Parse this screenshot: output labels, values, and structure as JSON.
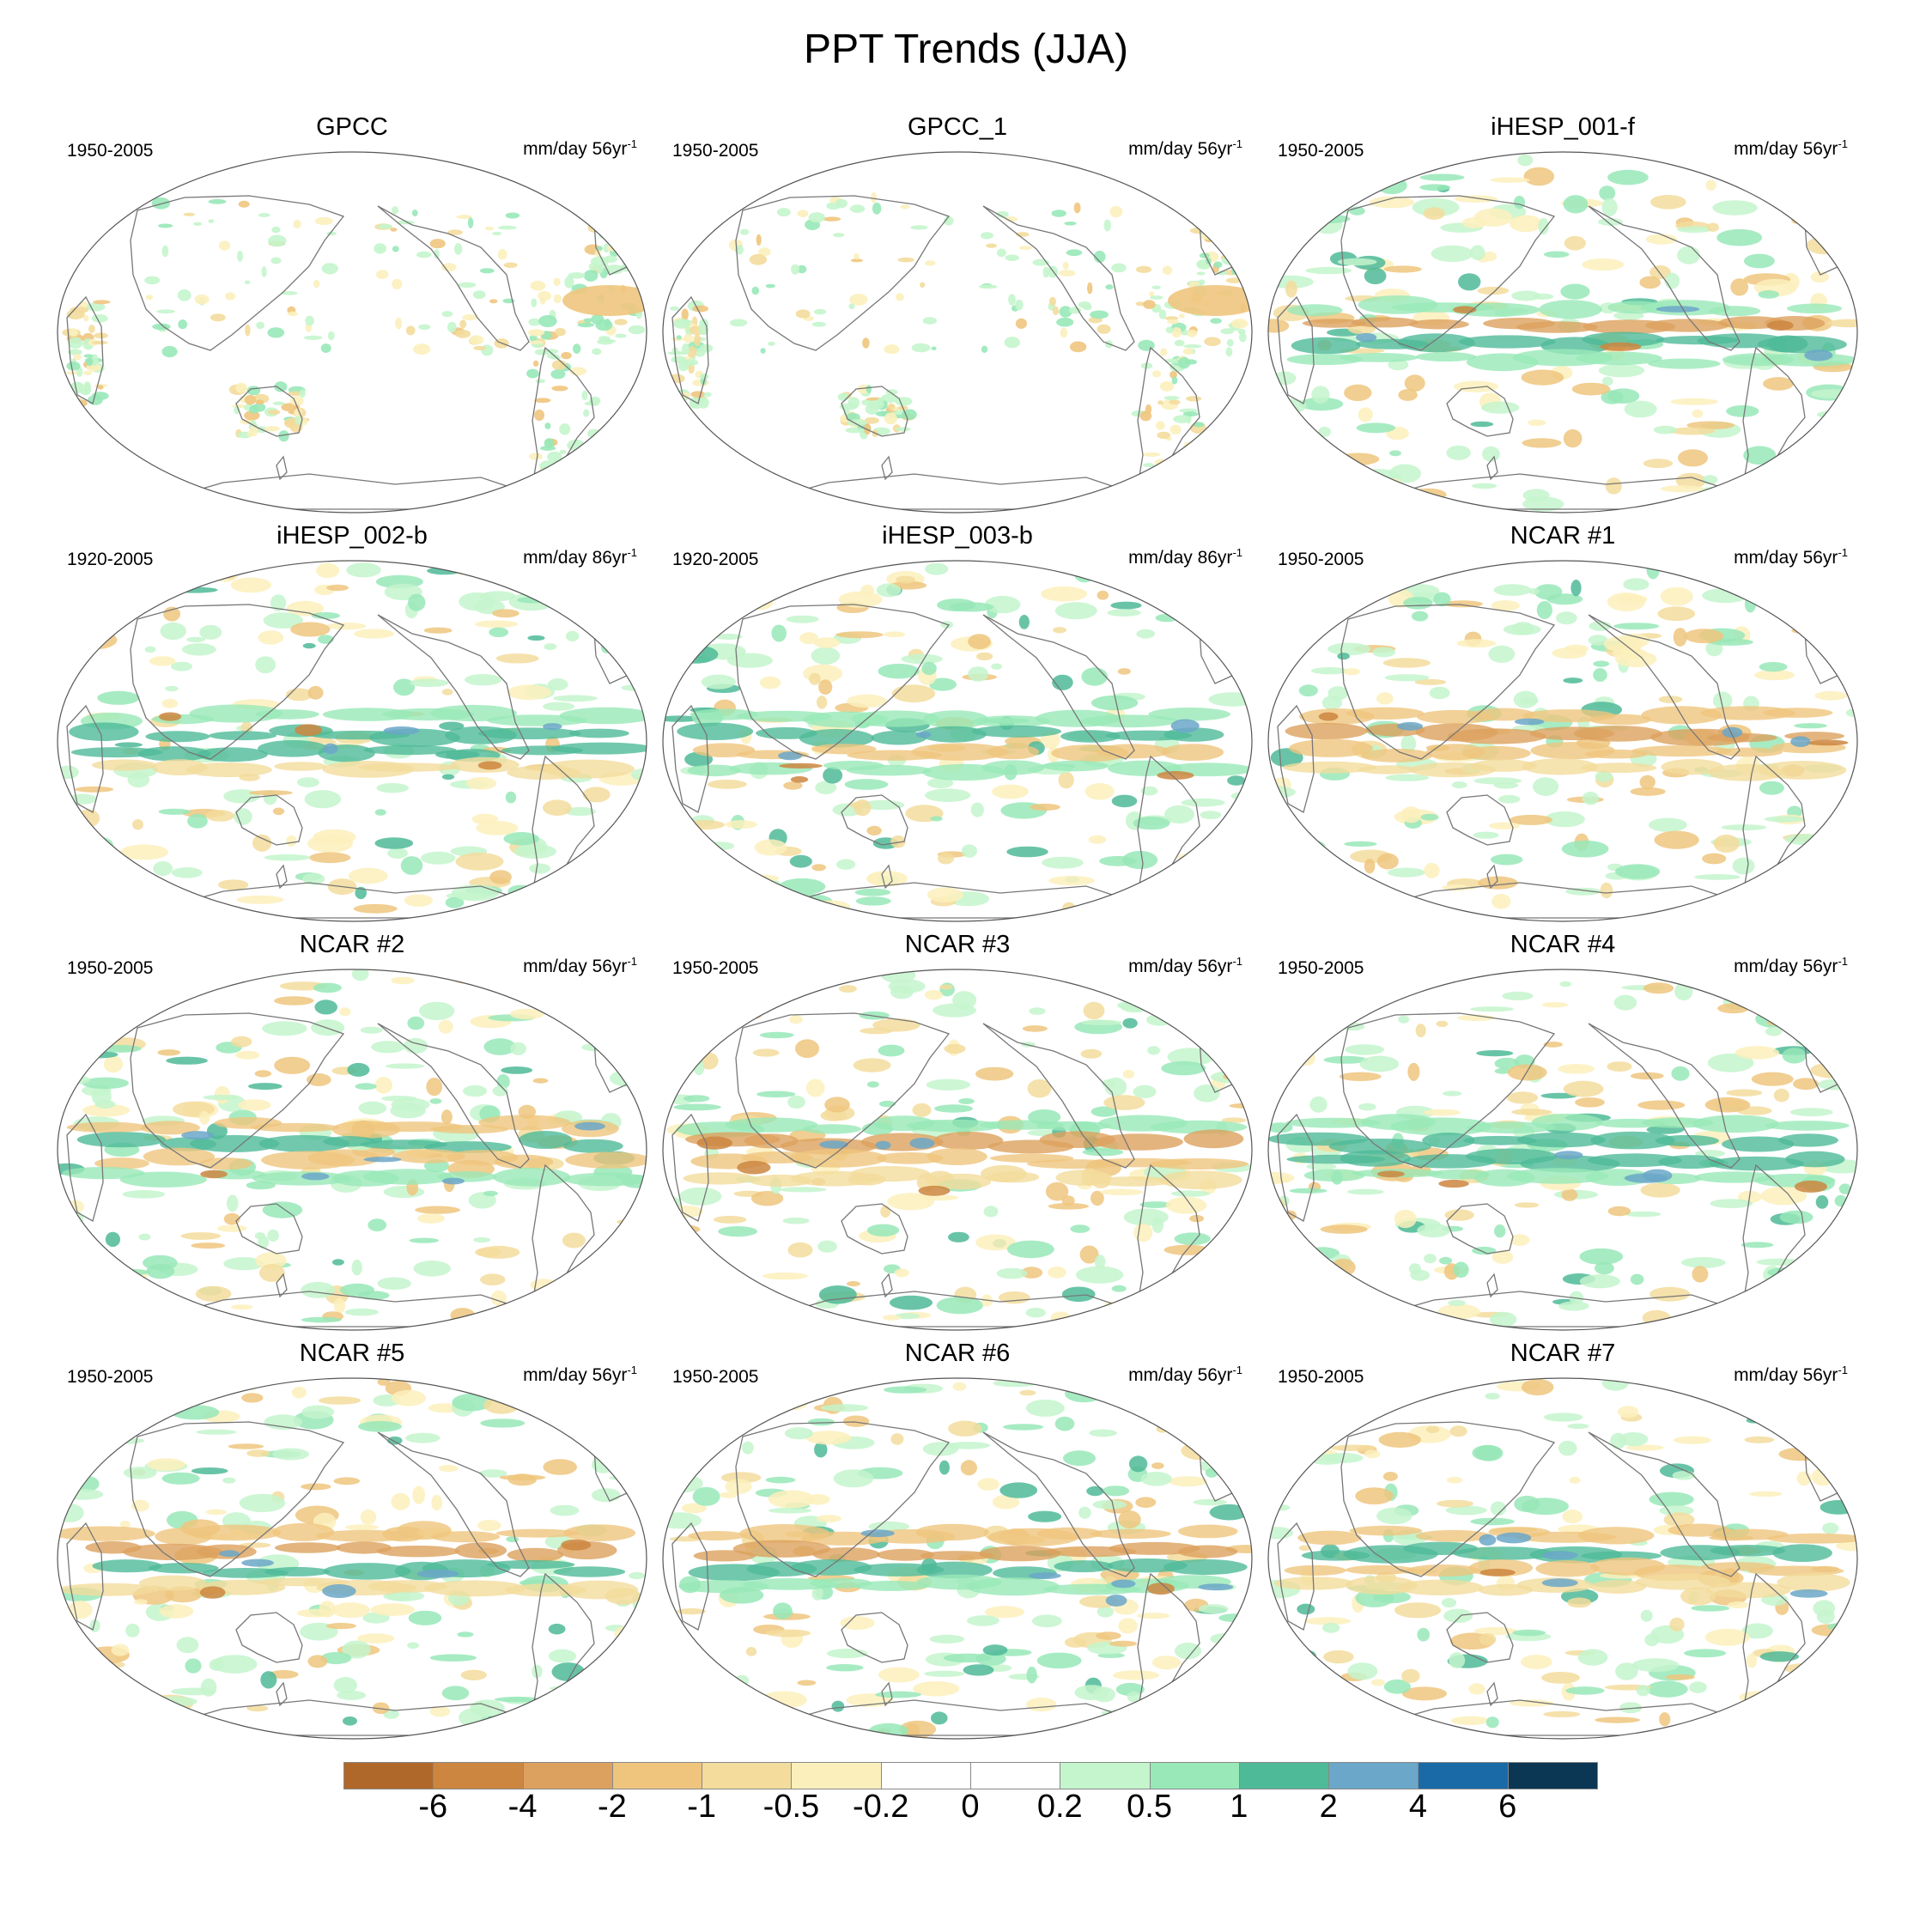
{
  "title": "PPT Trends (JJA)",
  "panels": [
    {
      "name": "GPCC",
      "period": "1950-2005",
      "units": "mm/day 56yr",
      "units_exp": "-1",
      "style": "obs"
    },
    {
      "name": "GPCC_1",
      "period": "1950-2005",
      "units": "mm/day 56yr",
      "units_exp": "-1",
      "style": "obs"
    },
    {
      "name": "iHESP_001-f",
      "period": "1950-2005",
      "units": "mm/day 56yr",
      "units_exp": "-1",
      "style": "model"
    },
    {
      "name": "iHESP_002-b",
      "period": "1920-2005",
      "units": "mm/day 86yr",
      "units_exp": "-1",
      "style": "model"
    },
    {
      "name": "iHESP_003-b",
      "period": "1920-2005",
      "units": "mm/day 86yr",
      "units_exp": "-1",
      "style": "model"
    },
    {
      "name": "NCAR #1",
      "period": "1950-2005",
      "units": "mm/day 56yr",
      "units_exp": "-1",
      "style": "model"
    },
    {
      "name": "NCAR #2",
      "period": "1950-2005",
      "units": "mm/day 56yr",
      "units_exp": "-1",
      "style": "model"
    },
    {
      "name": "NCAR #3",
      "period": "1950-2005",
      "units": "mm/day 56yr",
      "units_exp": "-1",
      "style": "model"
    },
    {
      "name": "NCAR #4",
      "period": "1950-2005",
      "units": "mm/day 56yr",
      "units_exp": "-1",
      "style": "model"
    },
    {
      "name": "NCAR #5",
      "period": "1950-2005",
      "units": "mm/day 56yr",
      "units_exp": "-1",
      "style": "model"
    },
    {
      "name": "NCAR #6",
      "period": "1950-2005",
      "units": "mm/day 56yr",
      "units_exp": "-1",
      "style": "model"
    },
    {
      "name": "NCAR #7",
      "period": "1950-2005",
      "units": "mm/day 56yr",
      "units_exp": "-1",
      "style": "model"
    }
  ],
  "colorbar": {
    "colors": [
      "#b0682a",
      "#cc8640",
      "#dca15e",
      "#efc57e",
      "#f3dc9c",
      "#fbf0bc",
      "#ffffff",
      "#ffffff",
      "#c4f5cc",
      "#98e8b8",
      "#4fba98",
      "#6ba7c8",
      "#1a6aa8",
      "#0b3654"
    ],
    "labels": [
      "-6",
      "-4",
      "-2",
      "-1",
      "-0.5",
      "-0.2",
      "0",
      "0.2",
      "0.5",
      "1",
      "2",
      "4",
      "6"
    ]
  }
}
